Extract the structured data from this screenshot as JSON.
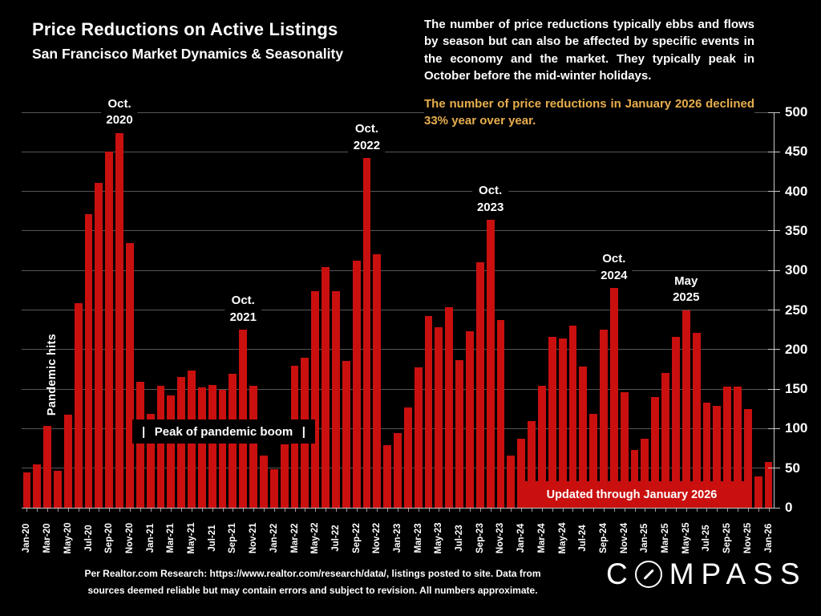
{
  "header": {
    "title": "Price Reductions on Active Listings",
    "subtitle": "San Francisco Market Dynamics & Seasonality"
  },
  "commentary": {
    "main": "The number of price reductions typically ebbs and flows by season but can also be affected by specific events in the economy and the market. They typically peak in October before the mid-winter holidays.",
    "highlight": "The number of price reductions in January 2026 declined 33% year over year.",
    "highlight_color": "#e8ae4d"
  },
  "chart_data": {
    "type": "bar",
    "title": "Price Reductions on Active Listings",
    "xlabel": "",
    "ylabel": "",
    "ylim": [
      0,
      500
    ],
    "ytick_step": 50,
    "yticks_side": "right",
    "grid": true,
    "bar_color": "#c9100f",
    "categories": [
      "Jan-20",
      "Feb-20",
      "Mar-20",
      "Apr-20",
      "May-20",
      "Jun-20",
      "Jul-20",
      "Aug-20",
      "Sep-20",
      "Oct-20",
      "Nov-20",
      "Dec-20",
      "Jan-21",
      "Feb-21",
      "Mar-21",
      "Apr-21",
      "May-21",
      "Jun-21",
      "Jul-21",
      "Aug-21",
      "Sep-21",
      "Oct-21",
      "Nov-21",
      "Dec-21",
      "Jan-22",
      "Feb-22",
      "Mar-22",
      "Apr-22",
      "May-22",
      "Jun-22",
      "Jul-22",
      "Aug-22",
      "Sep-22",
      "Oct-22",
      "Nov-22",
      "Dec-22",
      "Jan-23",
      "Feb-23",
      "Mar-23",
      "Apr-23",
      "May-23",
      "Jun-23",
      "Jul-23",
      "Aug-23",
      "Sep-23",
      "Oct-23",
      "Nov-23",
      "Dec-23",
      "Jan-24",
      "Feb-24",
      "Mar-24",
      "Apr-24",
      "May-24",
      "Jun-24",
      "Jul-24",
      "Aug-24",
      "Sep-24",
      "Oct-24",
      "Nov-24",
      "Dec-24",
      "Jan-25",
      "Feb-25",
      "Mar-25",
      "Apr-25",
      "May-25",
      "Jun-25",
      "Jul-25",
      "Aug-25",
      "Sep-25",
      "Oct-25",
      "Nov-25",
      "Dec-25",
      "Jan-26"
    ],
    "values": [
      45,
      55,
      103,
      47,
      118,
      259,
      371,
      411,
      450,
      474,
      335,
      159,
      119,
      154,
      142,
      165,
      173,
      152,
      155,
      149,
      169,
      225,
      154,
      66,
      49,
      80,
      180,
      190,
      274,
      304,
      274,
      186,
      312,
      442,
      320,
      79,
      94,
      127,
      177,
      242,
      228,
      254,
      187,
      223,
      310,
      364,
      237,
      66,
      87,
      110,
      154,
      216,
      214,
      230,
      179,
      119,
      225,
      278,
      146,
      73,
      87,
      140,
      170,
      216,
      250,
      221,
      133,
      129,
      153,
      153,
      125,
      40,
      58
    ],
    "xtick_every": 2,
    "annotations": [
      {
        "category": "Oct-20",
        "lines": [
          "Oct.",
          "2020"
        ]
      },
      {
        "category": "Oct-21",
        "lines": [
          "Oct.",
          "2021"
        ]
      },
      {
        "category": "Oct-22",
        "lines": [
          "Oct.",
          "2022"
        ]
      },
      {
        "category": "Oct-23",
        "lines": [
          "Oct.",
          "2023"
        ]
      },
      {
        "category": "Oct-24",
        "lines": [
          "Oct.",
          "2024"
        ]
      },
      {
        "category": "May-25",
        "lines": [
          "May",
          "2025"
        ]
      }
    ]
  },
  "overlays": {
    "pandemic": "Pandemic hits",
    "peak": {
      "pipe": "|",
      "text": "Peak of pandemic boom"
    },
    "updated": "Updated through January 2026"
  },
  "footer": {
    "line1": "Per Realtor.com Research:  https://www.realtor.com/research/data/, listings posted to site. Data from",
    "line2": "sources deemed reliable but may contain errors and subject to revision. All numbers approximate."
  },
  "logo": {
    "c": "C",
    "rest": "MPASS"
  }
}
